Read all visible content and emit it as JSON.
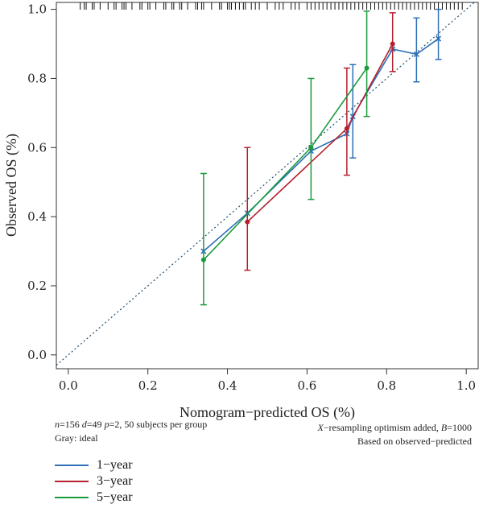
{
  "chart_data": {
    "type": "line",
    "xlabel": "Nomogram−predicted OS (%)",
    "ylabel": "Observed OS (%)",
    "xlim": [
      -0.03,
      1.03
    ],
    "ylim": [
      -0.04,
      1.02
    ],
    "xticks": [
      0.0,
      0.2,
      0.4,
      0.6,
      0.8,
      1.0
    ],
    "yticks": [
      0.0,
      0.2,
      0.4,
      0.6,
      0.8,
      1.0
    ],
    "xtick_labels": [
      "0.0",
      "0.2",
      "0.4",
      "0.6",
      "0.8",
      "1.0"
    ],
    "ytick_labels": [
      "0.0",
      "0.2",
      "0.4",
      "0.6",
      "0.8",
      "1.0"
    ],
    "ideal_line": true,
    "rug": [
      0.03,
      0.04,
      0.045,
      0.06,
      0.065,
      0.08,
      0.1,
      0.115,
      0.12,
      0.135,
      0.14,
      0.145,
      0.16,
      0.18,
      0.185,
      0.2,
      0.205,
      0.22,
      0.24,
      0.245,
      0.26,
      0.265,
      0.28,
      0.285,
      0.3,
      0.32,
      0.325,
      0.335,
      0.34,
      0.36,
      0.38,
      0.385,
      0.4,
      0.405,
      0.41,
      0.42,
      0.43,
      0.44,
      0.445,
      0.46,
      0.47,
      0.48,
      0.5,
      0.52,
      0.53,
      0.54,
      0.56,
      0.57,
      0.58,
      0.6,
      0.61,
      0.62,
      0.63,
      0.64,
      0.65,
      0.66,
      0.67,
      0.68,
      0.69,
      0.7,
      0.71,
      0.72,
      0.73,
      0.74,
      0.75,
      0.76,
      0.77,
      0.78,
      0.79,
      0.8,
      0.81,
      0.82,
      0.83,
      0.84,
      0.85,
      0.86,
      0.87,
      0.88,
      0.89,
      0.9,
      0.91,
      0.92,
      0.93,
      0.94,
      0.95,
      0.96,
      0.97,
      0.98,
      0.99
    ],
    "series": [
      {
        "name": "1−year",
        "color": "#2e6fb7",
        "marker": "x",
        "points": [
          {
            "x": 0.34,
            "y": 0.3,
            "lo": 0.3,
            "hi": 0.3,
            "errorbar": false
          },
          {
            "x": 0.45,
            "y": 0.41,
            "lo": 0.41,
            "hi": 0.41,
            "errorbar": false
          },
          {
            "x": 0.61,
            "y": 0.59,
            "lo": 0.59,
            "hi": 0.59,
            "errorbar": false
          },
          {
            "x": 0.7,
            "y": 0.64,
            "lo": 0.64,
            "hi": 0.64,
            "errorbar": false
          },
          {
            "x": 0.715,
            "y": 0.69,
            "lo": 0.57,
            "hi": 0.84,
            "errorbar": true
          },
          {
            "x": 0.815,
            "y": 0.885,
            "lo": 0.885,
            "hi": 0.885,
            "errorbar": false
          },
          {
            "x": 0.875,
            "y": 0.87,
            "lo": 0.79,
            "hi": 0.975,
            "errorbar": true
          },
          {
            "x": 0.93,
            "y": 0.915,
            "lo": 0.855,
            "hi": 1.0,
            "errorbar": true
          }
        ]
      },
      {
        "name": "3−year",
        "color": "#b5202e",
        "marker": "dot",
        "points": [
          {
            "x": 0.45,
            "y": 0.385,
            "lo": 0.245,
            "hi": 0.6,
            "errorbar": true
          },
          {
            "x": 0.7,
            "y": 0.655,
            "lo": 0.52,
            "hi": 0.83,
            "errorbar": true
          },
          {
            "x": 0.815,
            "y": 0.9,
            "lo": 0.82,
            "hi": 0.99,
            "errorbar": true
          }
        ]
      },
      {
        "name": "5−year",
        "color": "#1a9b3c",
        "marker": "dot",
        "points": [
          {
            "x": 0.34,
            "y": 0.275,
            "lo": 0.145,
            "hi": 0.525,
            "errorbar": true
          },
          {
            "x": 0.61,
            "y": 0.6,
            "lo": 0.45,
            "hi": 0.8,
            "errorbar": true
          },
          {
            "x": 0.75,
            "y": 0.83,
            "lo": 0.69,
            "hi": 0.995,
            "errorbar": true
          }
        ]
      }
    ]
  },
  "notes": {
    "n": "n",
    "n_val": "=156 ",
    "d": "d",
    "d_val": "=49 ",
    "p": "p",
    "p_val": "=2, 50 subjects per group",
    "gray": "Gray: ideal",
    "xres": "X",
    "xres_rest": "−resampling optimism added, ",
    "b": "B",
    "b_rest": "=1000",
    "based": "Based on observed−predicted"
  },
  "legend": [
    {
      "label": "1−year",
      "color": "#2e6fb7"
    },
    {
      "label": "3−year",
      "color": "#b5202e"
    },
    {
      "label": "5−year",
      "color": "#1a9b3c"
    }
  ]
}
